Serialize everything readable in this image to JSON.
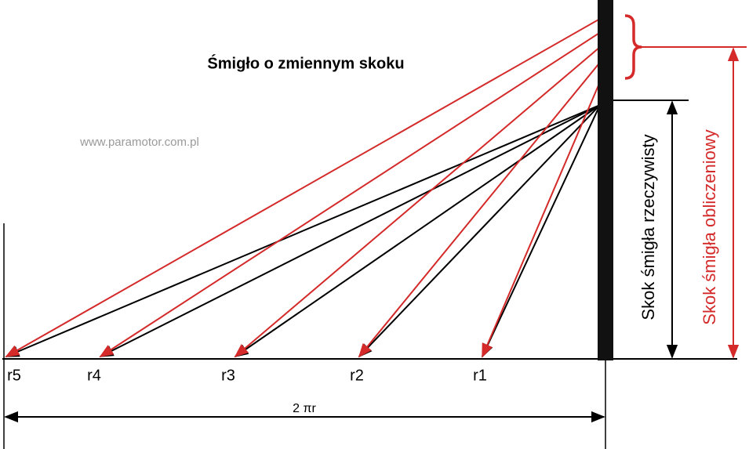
{
  "title": "Śmigło o zmiennym skoku",
  "website": "www.paramotor.com.pl",
  "radii": [
    "r5",
    "r4",
    "r3",
    "r2",
    "r1"
  ],
  "circumference": "2 πr",
  "actual_pitch": "Skok śmigła rzeczywisty",
  "calculated_pitch": "Skok śmigła obliczeniowy"
}
